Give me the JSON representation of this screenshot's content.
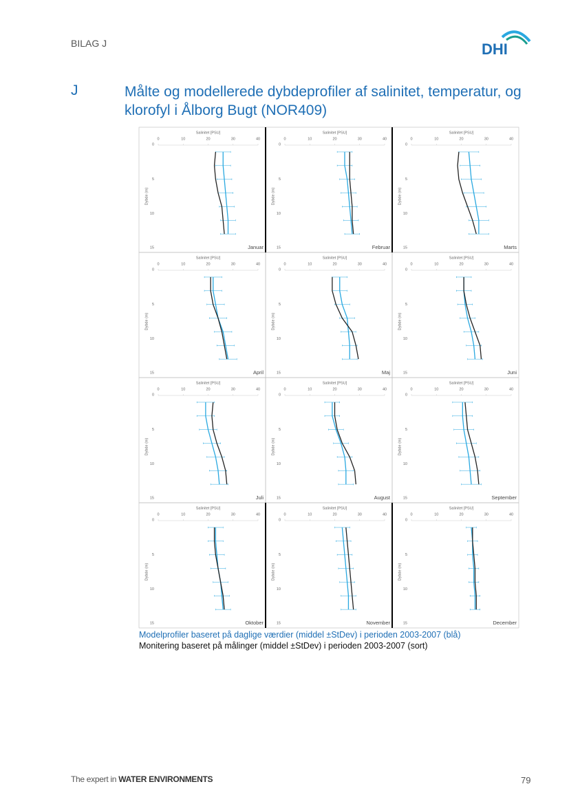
{
  "header": {
    "label": "BILAG J",
    "logo": "DHI"
  },
  "section": {
    "letter": "J",
    "title": "Målte og modellerede dybdeprofiler af salinitet, temperatur, og klorofyl i Ålborg Bugt (NOR409)"
  },
  "caption": [
    "Modelprofiler baseret på daglige værdier (middel ±StDev) i perioden 2003-2007 (blå)",
    "Monitering baseret på målinger (middel ±StDev) i perioden 2003-2007 (sort)"
  ],
  "footer": {
    "prefix": "The expert in",
    "brand": "WATER ENVIRONMENTS",
    "page": "79"
  },
  "chart_data": [
    {
      "type": "line",
      "title": "Salinitet [PSU]",
      "ylabel": "Dybde (m)",
      "label": "Januar",
      "xlim": [
        0,
        40
      ],
      "xticks": [
        0,
        10,
        20,
        30,
        40
      ],
      "ylim": [
        0,
        15
      ],
      "yticks": [
        0,
        5,
        10,
        15
      ],
      "y": [
        1,
        3,
        5,
        7,
        9,
        11,
        13
      ],
      "series": [
        {
          "color": "#29a8e0",
          "values": [
            26,
            26,
            26.5,
            27,
            27.5,
            28,
            28
          ],
          "errors": [
            3,
            3,
            3,
            3,
            3,
            3,
            3
          ]
        },
        {
          "color": "#222222",
          "values": [
            23,
            22.5,
            23,
            24,
            25.5,
            26,
            26.5
          ]
        }
      ]
    },
    {
      "type": "line",
      "title": "Salinitet [PSU]",
      "ylabel": "Dybde (m)",
      "label": "Februar",
      "xlim": [
        0,
        40
      ],
      "xticks": [
        0,
        10,
        20,
        30,
        40
      ],
      "ylim": [
        0,
        15
      ],
      "yticks": [
        0,
        5,
        10,
        15
      ],
      "y": [
        1,
        3,
        5,
        7,
        9,
        11,
        13
      ],
      "series": [
        {
          "color": "#29a8e0",
          "values": [
            24,
            24,
            25,
            25.5,
            26,
            26.5,
            27
          ],
          "errors": [
            3,
            3,
            3,
            3,
            3,
            3,
            3
          ]
        },
        {
          "color": "#222222",
          "values": [
            26,
            26,
            26,
            26.5,
            27,
            27,
            27.5
          ]
        }
      ]
    },
    {
      "type": "line",
      "title": "Salinitet [PSU]",
      "ylabel": "Dybde (m)",
      "label": "Marts",
      "xlim": [
        0,
        40
      ],
      "xticks": [
        0,
        10,
        20,
        30,
        40
      ],
      "ylim": [
        0,
        15
      ],
      "yticks": [
        0,
        5,
        10,
        15
      ],
      "y": [
        1,
        3,
        5,
        7,
        9,
        11,
        13
      ],
      "series": [
        {
          "color": "#29a8e0",
          "values": [
            23,
            23.5,
            24,
            25,
            26,
            27,
            27
          ],
          "errors": [
            4,
            4,
            4,
            4,
            4,
            4,
            4
          ]
        },
        {
          "color": "#222222",
          "values": [
            19,
            18.5,
            19,
            20.5,
            22.5,
            24.5,
            26
          ]
        }
      ]
    },
    {
      "type": "line",
      "title": "Salinitet [PSU]",
      "ylabel": "Dybde (m)",
      "label": "April",
      "xlim": [
        0,
        40
      ],
      "xticks": [
        0,
        10,
        20,
        30,
        40
      ],
      "ylim": [
        0,
        15
      ],
      "yticks": [
        0,
        5,
        10,
        15
      ],
      "y": [
        1,
        3,
        5,
        7,
        9,
        11,
        13
      ],
      "series": [
        {
          "color": "#29a8e0",
          "values": [
            22,
            22,
            23,
            24,
            26,
            27,
            28
          ],
          "errors": [
            3.5,
            3.5,
            3.5,
            3.5,
            3.5,
            3.5,
            3.5
          ]
        },
        {
          "color": "#222222",
          "values": [
            21,
            21,
            22,
            24,
            25.5,
            26.5,
            27.5
          ]
        }
      ]
    },
    {
      "type": "line",
      "title": "Salinitet [PSU]",
      "ylabel": "Dybde (m)",
      "label": "Maj",
      "xlim": [
        0,
        40
      ],
      "xticks": [
        0,
        10,
        20,
        30,
        40
      ],
      "ylim": [
        0,
        15
      ],
      "yticks": [
        0,
        5,
        10,
        15
      ],
      "y": [
        1,
        3,
        5,
        7,
        9,
        11,
        13
      ],
      "series": [
        {
          "color": "#29a8e0",
          "values": [
            22,
            22,
            23,
            25,
            25.5,
            26,
            26
          ],
          "errors": [
            3,
            3,
            3,
            3,
            3,
            3,
            3
          ]
        },
        {
          "color": "#222222",
          "values": [
            19,
            19,
            20.5,
            23,
            27,
            28.5,
            29.5
          ]
        }
      ]
    },
    {
      "type": "line",
      "title": "Salinitet [PSU]",
      "ylabel": "Dybde (m)",
      "label": "Juni",
      "xlim": [
        0,
        40
      ],
      "xticks": [
        0,
        10,
        20,
        30,
        40
      ],
      "ylim": [
        0,
        15
      ],
      "yticks": [
        0,
        5,
        10,
        15
      ],
      "y": [
        1,
        3,
        5,
        7,
        9,
        11,
        13
      ],
      "series": [
        {
          "color": "#29a8e0",
          "values": [
            21,
            21,
            21.5,
            22.5,
            24,
            25,
            25.5
          ],
          "errors": [
            3,
            3,
            3,
            3,
            3,
            3,
            3
          ]
        },
        {
          "color": "#222222",
          "values": [
            21,
            21,
            22,
            23.5,
            25.5,
            27.5,
            28
          ]
        }
      ]
    },
    {
      "type": "line",
      "title": "Salinitet [PSU]",
      "ylabel": "Dybde (m)",
      "label": "Juli",
      "xlim": [
        0,
        40
      ],
      "xticks": [
        0,
        10,
        20,
        30,
        40
      ],
      "ylim": [
        0,
        15
      ],
      "yticks": [
        0,
        5,
        10,
        15
      ],
      "y": [
        1,
        3,
        5,
        7,
        9,
        11,
        13
      ],
      "series": [
        {
          "color": "#29a8e0",
          "values": [
            19,
            19,
            20,
            21.5,
            23,
            24,
            24.5
          ],
          "errors": [
            3.5,
            3.5,
            3.5,
            3.5,
            3.5,
            3.5,
            3.5
          ]
        },
        {
          "color": "#222222",
          "values": [
            22,
            21.5,
            22,
            23.5,
            25.5,
            27,
            27.5
          ]
        }
      ]
    },
    {
      "type": "line",
      "title": "Salinitet [PSU]",
      "ylabel": "Dybde (m)",
      "label": "August",
      "xlim": [
        0,
        40
      ],
      "xticks": [
        0,
        10,
        20,
        30,
        40
      ],
      "ylim": [
        0,
        15
      ],
      "yticks": [
        0,
        5,
        10,
        15
      ],
      "y": [
        1,
        3,
        5,
        7,
        9,
        11,
        13
      ],
      "series": [
        {
          "color": "#29a8e0",
          "values": [
            19,
            19,
            20.5,
            22.5,
            24,
            24.5,
            24.5
          ],
          "errors": [
            3,
            3,
            3,
            3,
            3,
            3,
            3
          ]
        },
        {
          "color": "#222222",
          "values": [
            20,
            20,
            21,
            23,
            26,
            28,
            28.5
          ]
        }
      ]
    },
    {
      "type": "line",
      "title": "Salinitet [PSU]",
      "ylabel": "Dybde (m)",
      "label": "September",
      "xlim": [
        0,
        40
      ],
      "xticks": [
        0,
        10,
        20,
        30,
        40
      ],
      "ylim": [
        0,
        15
      ],
      "yticks": [
        0,
        5,
        10,
        15
      ],
      "y": [
        1,
        3,
        5,
        7,
        9,
        11,
        13
      ],
      "series": [
        {
          "color": "#29a8e0",
          "values": [
            20.5,
            20.5,
            21,
            22,
            23,
            23.5,
            24
          ],
          "errors": [
            4,
            4,
            4,
            4,
            4,
            4,
            4
          ]
        },
        {
          "color": "#222222",
          "values": [
            21.5,
            22,
            22.5,
            24,
            25.5,
            26.5,
            27
          ]
        }
      ]
    },
    {
      "type": "line",
      "title": "Salinitet [PSU]",
      "ylabel": "Dybde (m)",
      "label": "Oktober",
      "xlim": [
        0,
        40
      ],
      "xticks": [
        0,
        10,
        20,
        30,
        40
      ],
      "ylim": [
        0,
        15
      ],
      "yticks": [
        0,
        5,
        10,
        15
      ],
      "y": [
        1,
        3,
        5,
        7,
        9,
        11,
        13
      ],
      "series": [
        {
          "color": "#29a8e0",
          "values": [
            23,
            23,
            23.5,
            24,
            25,
            25.5,
            26
          ],
          "errors": [
            3,
            3,
            3,
            3,
            3,
            3,
            3
          ]
        },
        {
          "color": "#222222",
          "values": [
            22.5,
            22.5,
            23,
            24,
            25,
            26,
            26.5
          ]
        }
      ]
    },
    {
      "type": "line",
      "title": "Salinitet [PSU]",
      "ylabel": "Dybde (m)",
      "label": "November",
      "xlim": [
        0,
        40
      ],
      "xticks": [
        0,
        10,
        20,
        30,
        40
      ],
      "ylim": [
        0,
        15
      ],
      "yticks": [
        0,
        5,
        10,
        15
      ],
      "y": [
        1,
        3,
        5,
        7,
        9,
        11,
        13
      ],
      "series": [
        {
          "color": "#29a8e0",
          "values": [
            23,
            23.5,
            24,
            24.5,
            25,
            25.5,
            25.5
          ],
          "errors": [
            3,
            3,
            3,
            3,
            3,
            3,
            3
          ]
        },
        {
          "color": "#222222",
          "values": [
            24.5,
            25,
            25.5,
            26,
            26.5,
            27,
            27.5
          ]
        }
      ]
    },
    {
      "type": "line",
      "title": "Salinitet [PSU]",
      "ylabel": "Dybde (m)",
      "label": "December",
      "xlim": [
        0,
        40
      ],
      "xticks": [
        0,
        10,
        20,
        30,
        40
      ],
      "ylim": [
        0,
        15
      ],
      "yticks": [
        0,
        5,
        10,
        15
      ],
      "y": [
        1,
        3,
        5,
        7,
        9,
        11,
        13
      ],
      "series": [
        {
          "color": "#29a8e0",
          "values": [
            24,
            24.5,
            24.5,
            25,
            25,
            25.5,
            25.5
          ],
          "errors": [
            2,
            2,
            2,
            2,
            2,
            2,
            2
          ]
        },
        {
          "color": "#222222",
          "values": [
            24.5,
            24.5,
            25,
            25.5,
            25.5,
            26,
            26
          ]
        }
      ]
    }
  ]
}
